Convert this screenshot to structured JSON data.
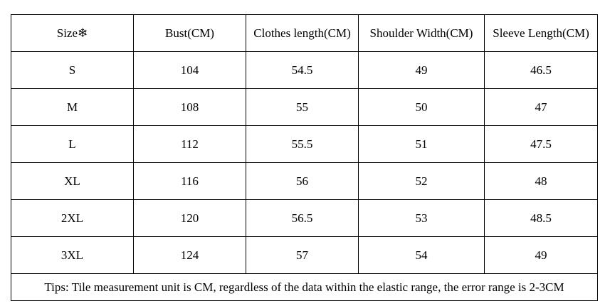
{
  "table": {
    "header": [
      "Size❄",
      "Bust(CM)",
      "Clothes length(CM)",
      "Shoulder Width(CM)",
      "Sleeve Length(CM)"
    ],
    "rows": [
      [
        "S",
        "104",
        "54.5",
        "49",
        "46.5"
      ],
      [
        "M",
        "108",
        "55",
        "50",
        "47"
      ],
      [
        "L",
        "112",
        "55.5",
        "51",
        "47.5"
      ],
      [
        "XL",
        "116",
        "56",
        "52",
        "48"
      ],
      [
        "2XL",
        "120",
        "56.5",
        "53",
        "48.5"
      ],
      [
        "3XL",
        "124",
        "57",
        "54",
        "49"
      ]
    ],
    "footer": "Tips: Tile measurement unit is CM, regardless of the data within the elastic range, the error range is 2-3CM"
  }
}
